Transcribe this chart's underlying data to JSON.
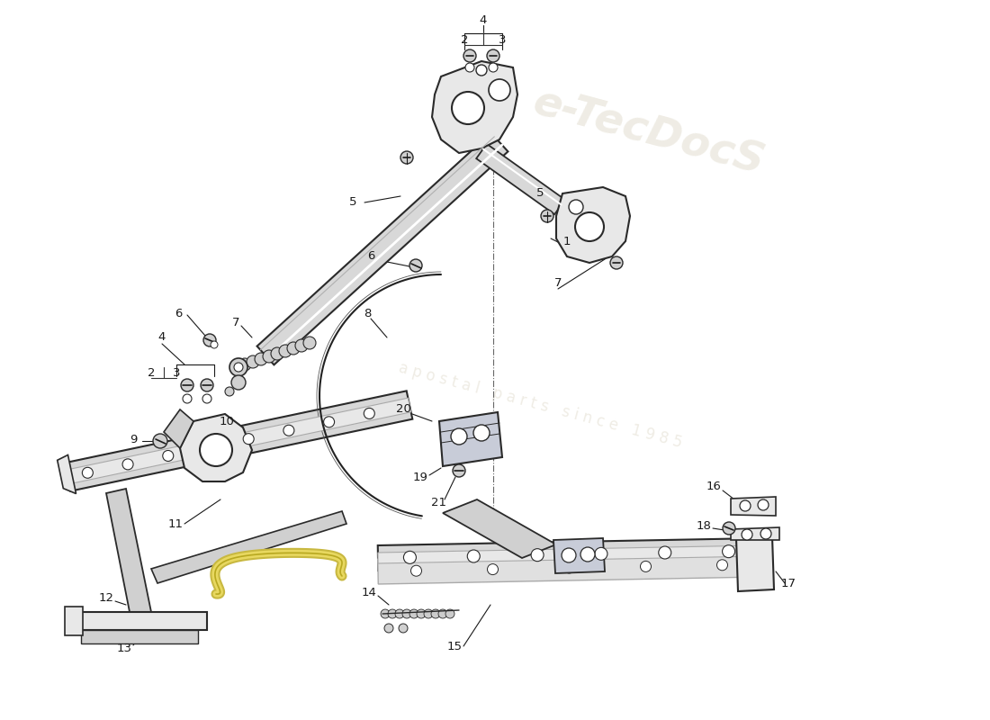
{
  "bg_color": "#ffffff",
  "line_color": "#1a1a1a",
  "part_fill": "#e8e8e8",
  "part_edge": "#2a2a2a",
  "shadow_fill": "#d0d0d0",
  "highlight": "#f0f0f0",
  "figsize": [
    11.0,
    8.0
  ],
  "dpi": 100
}
